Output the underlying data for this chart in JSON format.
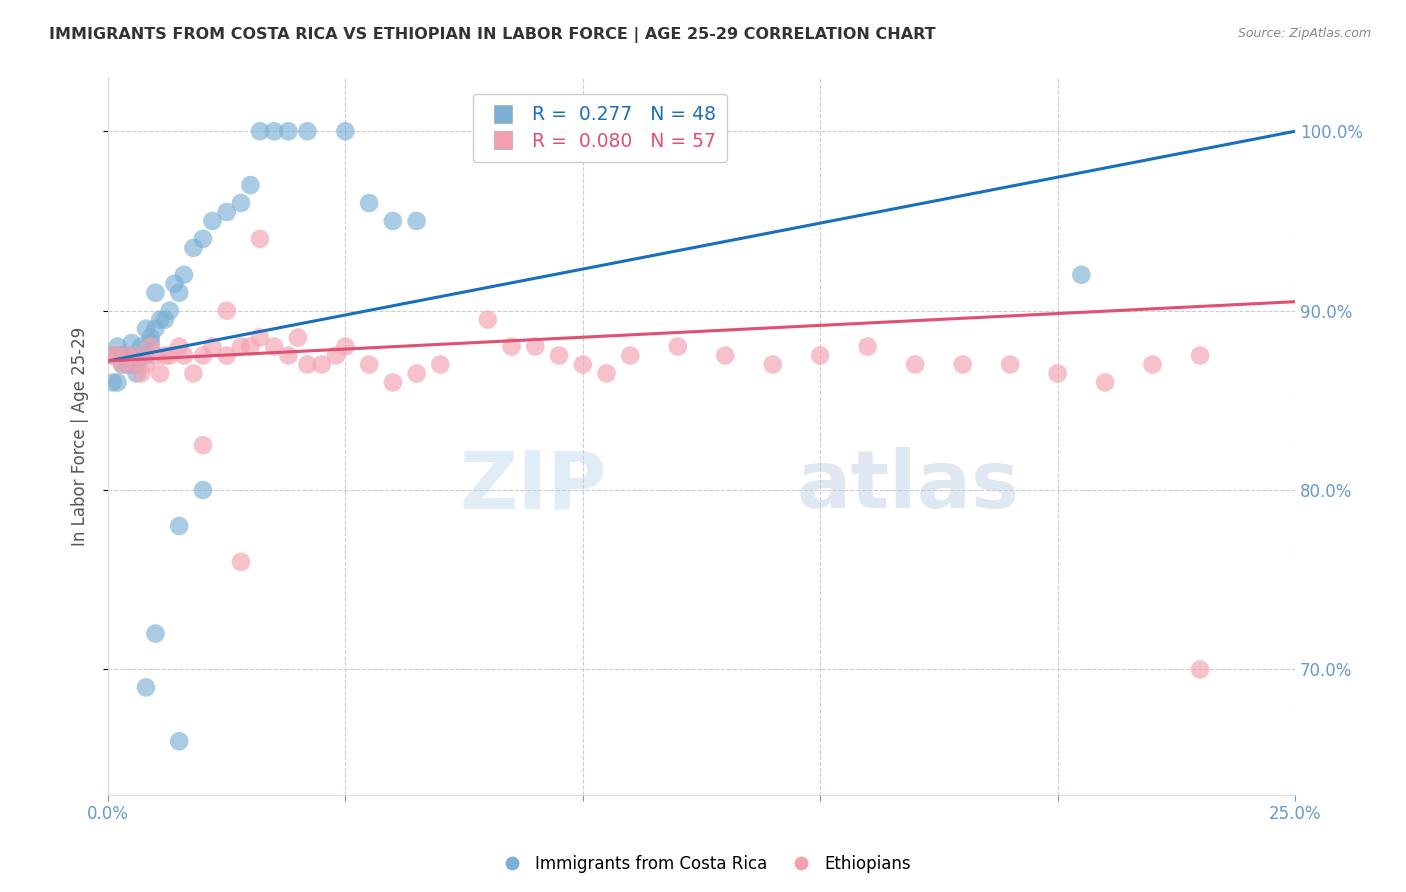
{
  "title": "IMMIGRANTS FROM COSTA RICA VS ETHIOPIAN IN LABOR FORCE | AGE 25-29 CORRELATION CHART",
  "source": "Source: ZipAtlas.com",
  "ylabel": "In Labor Force | Age 25-29",
  "xlim": [
    0.0,
    0.25
  ],
  "ylim": [
    0.63,
    1.03
  ],
  "yticks": [
    0.7,
    0.8,
    0.9,
    1.0
  ],
  "legend_blue_R": "0.277",
  "legend_blue_N": "48",
  "legend_pink_R": "0.080",
  "legend_pink_N": "57",
  "blue_color": "#7bafd4",
  "pink_color": "#f4a0b0",
  "blue_line_color": "#1a6fbd",
  "pink_line_color": "#e05070",
  "watermark_zip": "ZIP",
  "watermark_atlas": "atlas",
  "background_color": "#ffffff",
  "grid_color": "#cccccc",
  "title_color": "#333333",
  "axis_label_color": "#6699cc",
  "blue_scatter_x": [
    0.001,
    0.001,
    0.002,
    0.002,
    0.003,
    0.003,
    0.003,
    0.004,
    0.004,
    0.005,
    0.005,
    0.005,
    0.006,
    0.006,
    0.007,
    0.007,
    0.008,
    0.008,
    0.009,
    0.009,
    0.01,
    0.01,
    0.011,
    0.012,
    0.013,
    0.014,
    0.015,
    0.016,
    0.018,
    0.02,
    0.022,
    0.025,
    0.028,
    0.03,
    0.032,
    0.035,
    0.038,
    0.042,
    0.05,
    0.055,
    0.06,
    0.065,
    0.02,
    0.015,
    0.01,
    0.008,
    0.205,
    0.015
  ],
  "blue_scatter_y": [
    0.875,
    0.86,
    0.88,
    0.86,
    0.875,
    0.87,
    0.875,
    0.875,
    0.87,
    0.882,
    0.875,
    0.87,
    0.87,
    0.865,
    0.875,
    0.88,
    0.89,
    0.875,
    0.885,
    0.882,
    0.91,
    0.89,
    0.895,
    0.895,
    0.9,
    0.915,
    0.91,
    0.92,
    0.935,
    0.94,
    0.95,
    0.955,
    0.96,
    0.97,
    1.0,
    1.0,
    1.0,
    1.0,
    1.0,
    0.96,
    0.95,
    0.95,
    0.8,
    0.78,
    0.72,
    0.69,
    0.92,
    0.66
  ],
  "pink_scatter_x": [
    0.001,
    0.002,
    0.003,
    0.004,
    0.005,
    0.006,
    0.007,
    0.008,
    0.009,
    0.01,
    0.011,
    0.012,
    0.013,
    0.015,
    0.016,
    0.018,
    0.02,
    0.022,
    0.025,
    0.028,
    0.03,
    0.032,
    0.035,
    0.038,
    0.04,
    0.042,
    0.045,
    0.048,
    0.05,
    0.055,
    0.06,
    0.065,
    0.07,
    0.08,
    0.085,
    0.09,
    0.095,
    0.1,
    0.105,
    0.11,
    0.12,
    0.13,
    0.14,
    0.15,
    0.16,
    0.17,
    0.18,
    0.19,
    0.2,
    0.21,
    0.22,
    0.23,
    0.032,
    0.025,
    0.02,
    0.028,
    0.23
  ],
  "pink_scatter_y": [
    0.875,
    0.875,
    0.87,
    0.875,
    0.87,
    0.875,
    0.865,
    0.87,
    0.88,
    0.875,
    0.865,
    0.875,
    0.875,
    0.88,
    0.875,
    0.865,
    0.875,
    0.88,
    0.875,
    0.88,
    0.88,
    0.885,
    0.88,
    0.875,
    0.885,
    0.87,
    0.87,
    0.875,
    0.88,
    0.87,
    0.86,
    0.865,
    0.87,
    0.895,
    0.88,
    0.88,
    0.875,
    0.87,
    0.865,
    0.875,
    0.88,
    0.875,
    0.87,
    0.875,
    0.88,
    0.87,
    0.87,
    0.87,
    0.865,
    0.86,
    0.87,
    0.875,
    0.94,
    0.9,
    0.825,
    0.76,
    0.7
  ]
}
